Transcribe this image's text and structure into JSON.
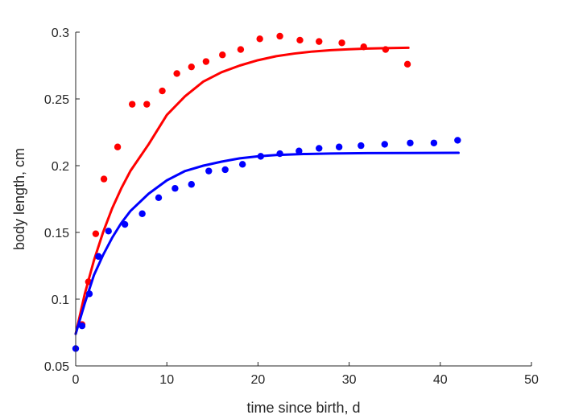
{
  "chart_data": {
    "type": "scatter",
    "xlabel": "time since birth, d",
    "ylabel": "body length, cm",
    "xlim": [
      0,
      50
    ],
    "ylim": [
      0.05,
      0.3
    ],
    "xticks": [
      0,
      10,
      20,
      30,
      40,
      50
    ],
    "yticks": [
      0.05,
      0.1,
      0.15,
      0.2,
      0.25,
      0.3
    ],
    "xtick_labels": [
      "0",
      "10",
      "20",
      "30",
      "40",
      "50"
    ],
    "ytick_labels": [
      "0.05",
      "0.1",
      "0.15",
      "0.2",
      "0.25",
      "0.3"
    ],
    "grid": false,
    "series": [
      {
        "color": "#ff0000",
        "points": [
          [
            0.7,
            0.081
          ],
          [
            1.4,
            0.113
          ],
          [
            2.2,
            0.149
          ],
          [
            3.1,
            0.19
          ],
          [
            4.6,
            0.214
          ],
          [
            6.2,
            0.246
          ],
          [
            7.8,
            0.246
          ],
          [
            9.5,
            0.256
          ],
          [
            11.1,
            0.269
          ],
          [
            12.7,
            0.274
          ],
          [
            14.3,
            0.278
          ],
          [
            16.1,
            0.283
          ],
          [
            18.1,
            0.287
          ],
          [
            20.2,
            0.295
          ],
          [
            22.4,
            0.297
          ],
          [
            24.6,
            0.294
          ],
          [
            26.7,
            0.293
          ],
          [
            29.2,
            0.292
          ],
          [
            31.6,
            0.289
          ],
          [
            34.0,
            0.287
          ],
          [
            36.4,
            0.276
          ]
        ],
        "fit": {
          "x": [
            0,
            1,
            2,
            3,
            4,
            5,
            6,
            8,
            10,
            12,
            14,
            16,
            18,
            20,
            22,
            24,
            26,
            28,
            30,
            32,
            34,
            36.5
          ],
          "y": [
            0.074,
            0.104,
            0.129,
            0.15,
            0.168,
            0.183,
            0.196,
            0.216,
            0.238,
            0.252,
            0.263,
            0.27,
            0.275,
            0.279,
            0.282,
            0.284,
            0.2855,
            0.2865,
            0.2872,
            0.2877,
            0.288,
            0.2883
          ]
        }
      },
      {
        "color": "#0000ff",
        "points": [
          [
            0.0,
            0.063
          ],
          [
            0.7,
            0.08
          ],
          [
            1.5,
            0.104
          ],
          [
            2.5,
            0.132
          ],
          [
            3.6,
            0.151
          ],
          [
            5.4,
            0.156
          ],
          [
            7.3,
            0.164
          ],
          [
            9.1,
            0.176
          ],
          [
            10.9,
            0.183
          ],
          [
            12.7,
            0.186
          ],
          [
            14.6,
            0.196
          ],
          [
            16.4,
            0.197
          ],
          [
            18.3,
            0.201
          ],
          [
            20.3,
            0.207
          ],
          [
            22.4,
            0.209
          ],
          [
            24.5,
            0.211
          ],
          [
            26.7,
            0.213
          ],
          [
            28.9,
            0.214
          ],
          [
            31.3,
            0.215
          ],
          [
            33.9,
            0.216
          ],
          [
            36.7,
            0.217
          ],
          [
            39.3,
            0.217
          ],
          [
            41.9,
            0.219
          ]
        ],
        "fit": {
          "x": [
            0,
            1,
            2,
            3,
            4,
            5,
            6,
            8,
            10,
            12,
            14,
            16,
            18,
            20,
            22,
            25,
            28,
            32,
            36,
            42
          ],
          "y": [
            0.074,
            0.097,
            0.118,
            0.133,
            0.146,
            0.157,
            0.166,
            0.179,
            0.189,
            0.196,
            0.2,
            0.203,
            0.2055,
            0.207,
            0.208,
            0.2087,
            0.2091,
            0.2094,
            0.2095,
            0.2096
          ]
        }
      }
    ]
  }
}
